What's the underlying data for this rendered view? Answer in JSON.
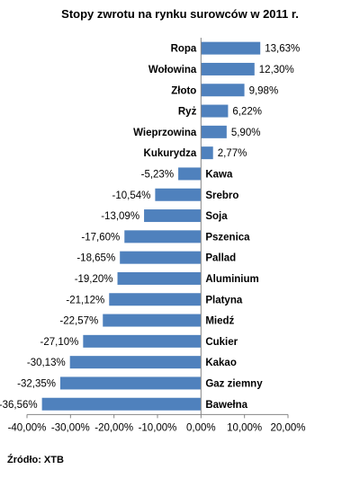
{
  "chart_data": {
    "type": "bar",
    "orientation": "horizontal",
    "title": "Stopy zwrotu na rynku surowców w 2011 r.",
    "categories": [
      "Ropa",
      "Wołowina",
      "Złoto",
      "Ryż",
      "Wieprzowina",
      "Kukurydza",
      "Kawa",
      "Srebro",
      "Soja",
      "Pszenica",
      "Pallad",
      "Aluminium",
      "Platyna",
      "Miedź",
      "Cukier",
      "Kakao",
      "Gaz ziemny",
      "Bawełna"
    ],
    "values": [
      13.63,
      12.3,
      9.98,
      6.22,
      5.9,
      2.77,
      -5.23,
      -10.54,
      -13.09,
      -17.6,
      -18.65,
      -19.2,
      -21.12,
      -22.57,
      -27.1,
      -30.13,
      -32.35,
      -36.56
    ],
    "value_labels": [
      "13,63%",
      "12,30%",
      "9,98%",
      "6,22%",
      "5,90%",
      "2,77%",
      "-5,23%",
      "-10,54%",
      "-13,09%",
      "-17,60%",
      "-18,65%",
      "-19,20%",
      "-21,12%",
      "-22,57%",
      "-27,10%",
      "-30,13%",
      "-32,35%",
      "-36,56%"
    ],
    "xlim": [
      -40,
      20
    ],
    "x_ticks": [
      -40,
      -30,
      -20,
      -10,
      0,
      10,
      20
    ],
    "x_tick_labels": [
      "-40,00%",
      "-30,00%",
      "-20,00%",
      "-10,00%",
      "0,00%",
      "10,00%",
      "20,00%"
    ],
    "bar_color": "#4F81BD",
    "grid": false,
    "legend": "none"
  },
  "source": "Źródło: XTB"
}
